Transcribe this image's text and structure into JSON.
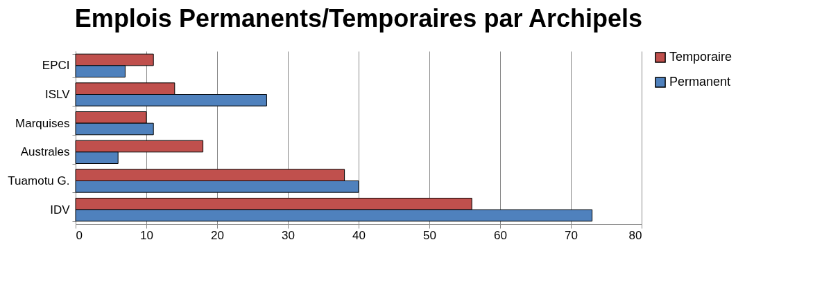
{
  "chart_data": {
    "type": "bar",
    "orientation": "horizontal",
    "title": "Emplois Permanents/Temporaires par Archipels",
    "categories": [
      "EPCI",
      "ISLV",
      "Marquises",
      "Australes",
      "Tuamotu G.",
      "IDV"
    ],
    "series": [
      {
        "name": "Temporaire",
        "color": "#c0504d",
        "values": [
          11,
          14,
          10,
          18,
          38,
          56
        ]
      },
      {
        "name": "Permanent",
        "color": "#4f81bd",
        "values": [
          7,
          27,
          11,
          6,
          40,
          73
        ]
      }
    ],
    "xlim": [
      0,
      80
    ],
    "xticks": [
      0,
      10,
      20,
      30,
      40,
      50,
      60,
      70,
      80
    ],
    "grid": "x",
    "legend": "right"
  }
}
